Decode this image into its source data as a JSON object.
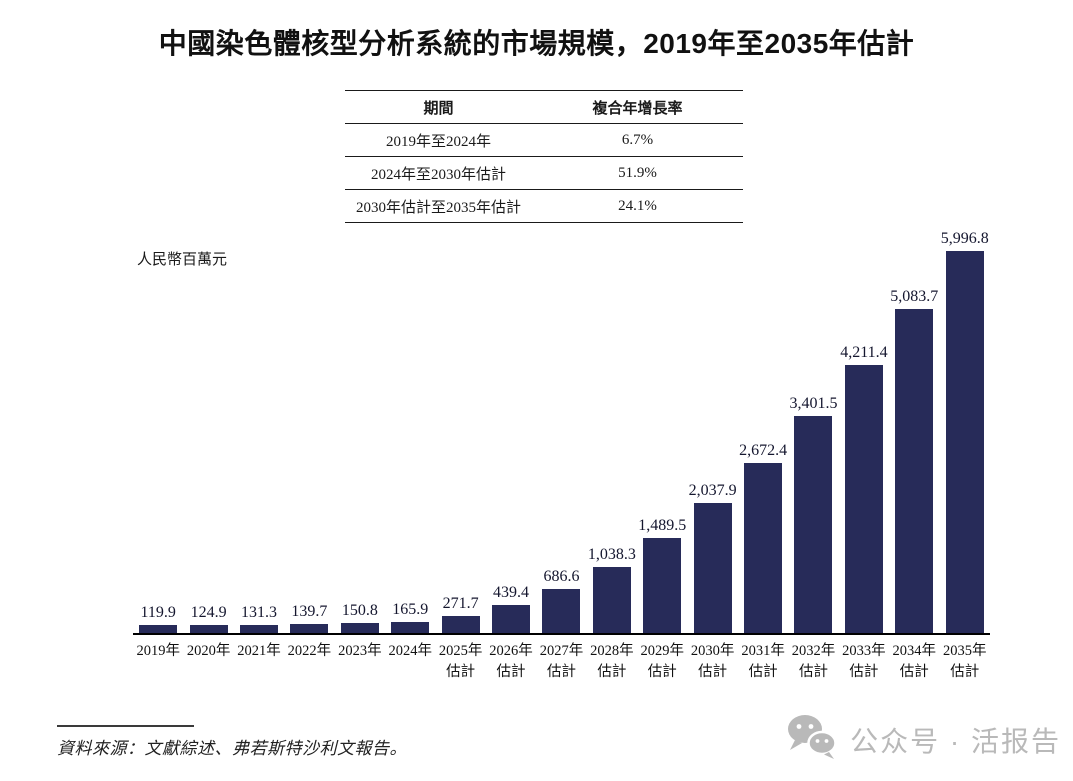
{
  "title": "中國染色體核型分析系統的市場規模，2019年至2035年估計",
  "cagr_table": {
    "col_period": "期間",
    "col_cagr": "複合年增長率",
    "rows": [
      {
        "period": "2019年至2024年",
        "cagr": "6.7%"
      },
      {
        "period": "2024年至2030年估計",
        "cagr": "51.9%"
      },
      {
        "period": "2030年估計至2035年估計",
        "cagr": "24.1%"
      }
    ]
  },
  "chart_data": {
    "type": "bar",
    "title": "中國染色體核型分析系統的市場規模，2019年至2035年估計",
    "ylabel": "人民幣百萬元",
    "xlabel": "",
    "categories": [
      "2019年",
      "2020年",
      "2021年",
      "2022年",
      "2023年",
      "2024年",
      "2025年估計",
      "2026年估計",
      "2027年估計",
      "2028年估計",
      "2029年估計",
      "2030年估計",
      "2031年估計",
      "2032年估計",
      "2033年估計",
      "2034年估計",
      "2035年估計"
    ],
    "values": [
      119.9,
      124.9,
      131.3,
      139.7,
      150.8,
      165.9,
      271.7,
      439.4,
      686.6,
      1038.3,
      1489.5,
      2037.9,
      2672.4,
      3401.5,
      4211.4,
      5083.7,
      5996.8
    ],
    "value_labels": [
      "119.9",
      "124.9",
      "131.3",
      "139.7",
      "150.8",
      "165.9",
      "271.7",
      "439.4",
      "686.6",
      "1,038.3",
      "1,489.5",
      "2,037.9",
      "2,672.4",
      "3,401.5",
      "4,211.4",
      "5,083.7",
      "5,996.8"
    ],
    "ylim": [
      0,
      6000
    ],
    "grid": false,
    "legend": false,
    "bar_color": "#272b59"
  },
  "source_note": "資料來源：文獻綜述、弗若斯特沙利文報告。",
  "watermark": {
    "icon": "wechat-icon",
    "text": "公众号 · 活报告",
    "color": "#b9b9b9"
  }
}
